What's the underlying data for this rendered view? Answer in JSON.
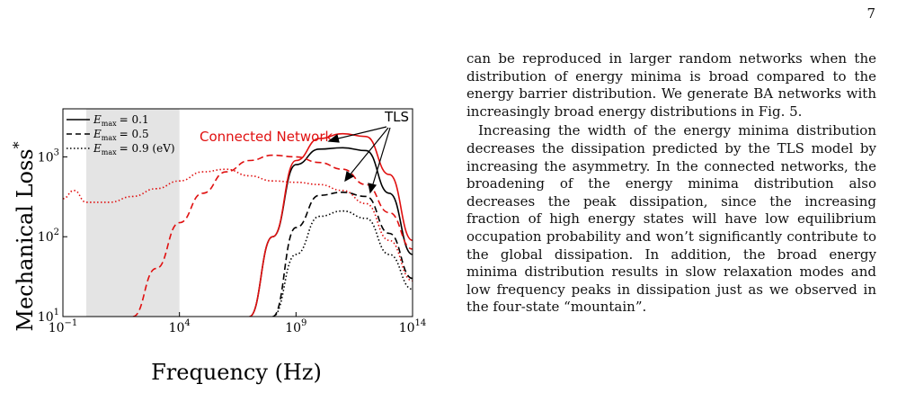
{
  "page": {
    "number": "7"
  },
  "body_text": {
    "paragraphs": [
      "can be reproduced in larger random networks when the distribution of energy minima is broad compared to the energy barrier distribution. We generate BA networks with increasingly broad energy distributions in Fig. 5.",
      "Increasing the width of the energy minima distribution decreases the dissipation predicted by the TLS model by increasing the asymmetry. In the connected networks, the broadening of the energy minima distribution also decreases the peak dissipation, since the increasing fraction of high energy states will have low equilibrium occupation probability and won’t significantly contribute to the global dissipation. In addition, the broad energy minima distribution results in slow relaxation modes and low frequency peaks in dissipation just as we observed in the four-state “mountain”."
    ]
  },
  "figure": {
    "annotation_connected": "Connected Network",
    "annotation_tls": "TLS",
    "legend": [
      {
        "symbol": "E",
        "subscript": "max",
        "value": "= 0.1"
      },
      {
        "symbol": "E",
        "subscript": "max",
        "value": "= 0.5"
      },
      {
        "symbol": "E",
        "subscript": "max",
        "value": "= 0.9 (eV)"
      }
    ]
  },
  "chart_data": {
    "type": "line",
    "xlabel": "Frequency (Hz)",
    "ylabel": "Mechanical Loss",
    "ylabel_mark": "*",
    "x_scale": "log",
    "y_scale": "log",
    "xlim": [
      0.1,
      100000000000000
    ],
    "ylim": [
      10,
      4000
    ],
    "x_ticks": [
      {
        "base": "10",
        "exp": "−1"
      },
      {
        "base": "10",
        "exp": "4"
      },
      {
        "base": "10",
        "exp": "9"
      },
      {
        "base": "10",
        "exp": "14"
      }
    ],
    "y_ticks": [
      {
        "base": "10",
        "exp": "1"
      },
      {
        "base": "10",
        "exp": "2"
      },
      {
        "base": "10",
        "exp": "3"
      }
    ],
    "shaded_x_range": [
      1,
      10000
    ],
    "colors": {
      "tls": "#000000",
      "connected": "#e01010",
      "shade": "#e4e4e4"
    },
    "series": [
      {
        "model": "TLS",
        "emax": 0.1,
        "style": "solid",
        "points": [
          [
            10000000,
            10
          ],
          [
            100000000,
            100
          ],
          [
            1000000000,
            800
          ],
          [
            10000000000,
            1250
          ],
          [
            100000000000,
            1300
          ],
          [
            1000000000000,
            1200
          ],
          [
            10000000000000,
            350
          ],
          [
            100000000000000,
            60
          ]
        ]
      },
      {
        "model": "TLS",
        "emax": 0.5,
        "style": "dashed",
        "points": [
          [
            100000000,
            10
          ],
          [
            1000000000,
            130
          ],
          [
            10000000000,
            330
          ],
          [
            100000000000,
            360
          ],
          [
            1000000000000,
            320
          ],
          [
            10000000000000,
            110
          ],
          [
            100000000000000,
            30
          ]
        ]
      },
      {
        "model": "TLS",
        "emax": 0.9,
        "style": "dotted",
        "points": [
          [
            100000000,
            10
          ],
          [
            1000000000,
            60
          ],
          [
            10000000000,
            180
          ],
          [
            100000000000,
            210
          ],
          [
            1000000000000,
            170
          ],
          [
            10000000000000,
            60
          ],
          [
            100000000000000,
            22
          ]
        ]
      },
      {
        "model": "Connected Network",
        "emax": 0.1,
        "style": "solid",
        "points": [
          [
            10000000,
            10
          ],
          [
            100000000,
            100
          ],
          [
            1000000000,
            900
          ],
          [
            10000000000,
            1700
          ],
          [
            100000000000,
            1950
          ],
          [
            1000000000000,
            1800
          ],
          [
            10000000000000,
            600
          ],
          [
            100000000000000,
            90
          ]
        ]
      },
      {
        "model": "Connected Network",
        "emax": 0.5,
        "style": "dashed",
        "points": [
          [
            100,
            10
          ],
          [
            1000,
            40
          ],
          [
            10000,
            150
          ],
          [
            100000,
            350
          ],
          [
            1000000,
            650
          ],
          [
            10000000,
            900
          ],
          [
            100000000,
            1050
          ],
          [
            1000000000,
            1000
          ],
          [
            10000000000,
            850
          ],
          [
            100000000000,
            700
          ],
          [
            1000000000000,
            450
          ],
          [
            10000000000000,
            200
          ],
          [
            100000000000000,
            70
          ]
        ]
      },
      {
        "model": "Connected Network",
        "emax": 0.9,
        "style": "dotted",
        "points": [
          [
            0.1,
            300
          ],
          [
            0.3,
            380
          ],
          [
            1,
            270
          ],
          [
            10,
            270
          ],
          [
            100,
            320
          ],
          [
            1000,
            400
          ],
          [
            10000,
            500
          ],
          [
            100000,
            650
          ],
          [
            1000000,
            700
          ],
          [
            10000000,
            580
          ],
          [
            100000000,
            500
          ],
          [
            1000000000,
            480
          ],
          [
            10000000000,
            450
          ],
          [
            100000000000,
            380
          ],
          [
            1000000000000,
            260
          ],
          [
            10000000000000,
            90
          ],
          [
            100000000000000,
            28
          ]
        ]
      }
    ]
  }
}
